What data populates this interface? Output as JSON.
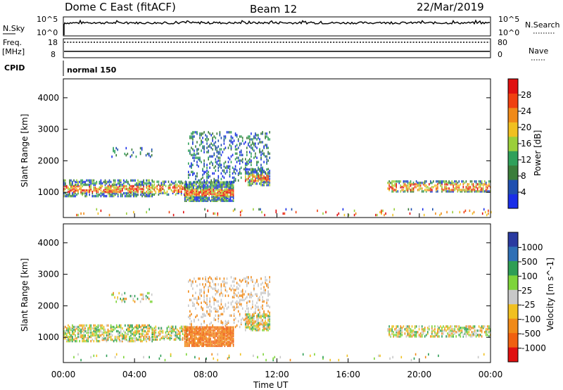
{
  "header": {
    "radar": "Dome C East (fitACF)",
    "beam": "Beam 12",
    "date": "22/Mar/2019"
  },
  "top_panels": {
    "nsky_label": "N.Sky",
    "nsearch_label": "N.Search",
    "nsky_ticks": [
      "10^5",
      "10^0"
    ],
    "nsearch_ticks": [
      "10^5",
      "10^0"
    ],
    "freq_label": "Freq.",
    "freq_unit": "[MHz]",
    "freq_ticks": [
      "18",
      "8"
    ],
    "nave_label": "Nave",
    "nave_ticks": [
      "80",
      "0"
    ],
    "cpid_label": "CPID",
    "cpid_value": "normal 150"
  },
  "colors": {
    "power": [
      "#1a2ee8",
      "#1f4fb0",
      "#3a7d3a",
      "#2fa05a",
      "#9bcf3a",
      "#f0c020",
      "#f08a18",
      "#f04010",
      "#e01010"
    ],
    "velocity": [
      "#2a3aa0",
      "#2e6fb5",
      "#2e9e55",
      "#7ed43a",
      "#c8c8c8",
      "#f0c020",
      "#f08a18",
      "#f06010",
      "#e01010"
    ]
  },
  "chart_data": [
    {
      "type": "heatmap",
      "panel": "power",
      "ylabel": "Slant Range [km]",
      "xlabel": "",
      "ylim": [
        200,
        4600
      ],
      "xlim": [
        "00:00",
        "24:00"
      ],
      "yticks": [
        "1000",
        "2000",
        "3000",
        "4000"
      ],
      "colorbar_label": "Power [dB]",
      "colorbar_ticks": [
        "4",
        "8",
        "12",
        "16",
        "20",
        "24",
        "28"
      ],
      "colorbar_range": [
        0,
        32
      ]
    },
    {
      "type": "heatmap",
      "panel": "velocity",
      "ylabel": "Slant Range [km]",
      "xlabel": "Time UT",
      "ylim": [
        200,
        4600
      ],
      "xlim": [
        "00:00",
        "24:00"
      ],
      "xticks": [
        "00:00",
        "04:00",
        "08:00",
        "12:00",
        "16:00",
        "20:00",
        "00:00"
      ],
      "yticks": [
        "1000",
        "2000",
        "3000",
        "4000"
      ],
      "colorbar_label": "Velocity [m s^-1]",
      "colorbar_ticks": [
        "1000",
        "500",
        "100",
        "25",
        "-25",
        "-100",
        "-500",
        "-1000"
      ]
    }
  ]
}
